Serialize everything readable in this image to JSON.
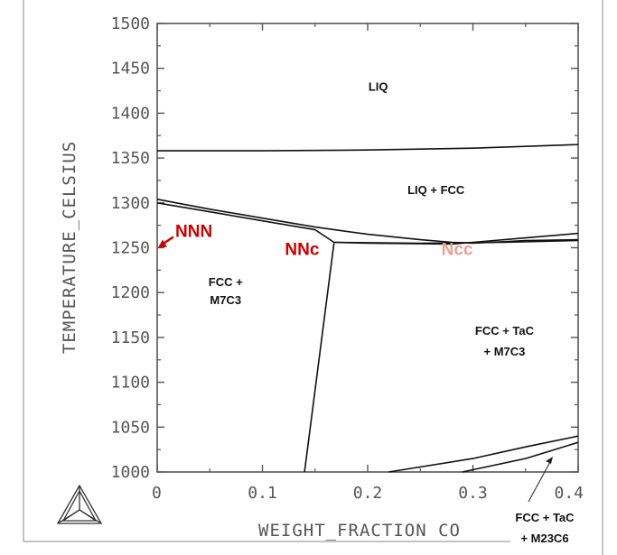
{
  "chart_data": {
    "type": "phase-diagram",
    "xlabel": "WEIGHT_FRACTION CO",
    "ylabel": "TEMPERATURE_CELSIUS",
    "xlim": [
      0,
      0.4
    ],
    "ylim": [
      1000,
      1500
    ],
    "x_ticks": [
      0,
      0.1,
      0.2,
      0.3,
      0.4
    ],
    "x_tick_labels": [
      "0",
      "0.1",
      "0.2",
      "0.3",
      "0.4"
    ],
    "y_ticks": [
      1000,
      1050,
      1100,
      1150,
      1200,
      1250,
      1300,
      1350,
      1400,
      1450,
      1500
    ],
    "y_tick_labels": [
      "1000",
      "1050",
      "1100",
      "1150",
      "1200",
      "1250",
      "1300",
      "1350",
      "1400",
      "1450",
      "1500"
    ],
    "grid": false,
    "boundaries": [
      {
        "points": [
          [
            0,
            1358
          ],
          [
            0.1,
            1358
          ],
          [
            0.2,
            1359
          ],
          [
            0.3,
            1361
          ],
          [
            0.4,
            1365
          ]
        ]
      },
      {
        "points": [
          [
            0,
            1304
          ],
          [
            0.05,
            1293
          ],
          [
            0.1,
            1283
          ],
          [
            0.15,
            1273
          ],
          [
            0.2,
            1265
          ],
          [
            0.25,
            1259
          ],
          [
            0.28,
            1256
          ],
          [
            0.3,
            1255
          ],
          [
            0.35,
            1258
          ],
          [
            0.4,
            1259
          ]
        ]
      },
      {
        "points": [
          [
            0,
            1300
          ],
          [
            0.05,
            1290
          ],
          [
            0.1,
            1280
          ],
          [
            0.15,
            1270
          ],
          [
            0.168,
            1256
          ],
          [
            0.2,
            1255
          ],
          [
            0.28,
            1254
          ],
          [
            0.3,
            1256
          ],
          [
            0.35,
            1261
          ],
          [
            0.4,
            1266
          ]
        ]
      },
      {
        "points": [
          [
            0.168,
            1256
          ],
          [
            0.25,
            1255
          ],
          [
            0.33,
            1256
          ],
          [
            0.4,
            1258
          ]
        ]
      },
      {
        "points": [
          [
            0.168,
            1255
          ],
          [
            0.14,
            1000
          ]
        ]
      },
      {
        "points": [
          [
            0.22,
            1000
          ],
          [
            0.3,
            1015
          ],
          [
            0.35,
            1028
          ],
          [
            0.4,
            1040
          ]
        ]
      },
      {
        "points": [
          [
            0.29,
            1000
          ],
          [
            0.35,
            1015
          ],
          [
            0.4,
            1033
          ]
        ]
      }
    ],
    "regions": [
      {
        "label": "LIQ",
        "x": 0.21,
        "t": 1425
      },
      {
        "label": "LIQ + FCC",
        "x": 0.265,
        "t": 1310
      },
      {
        "label": "FCC +",
        "x": 0.065,
        "t": 1207
      },
      {
        "label": "M7C3",
        "x": 0.065,
        "t": 1187
      },
      {
        "label": "FCC + TaC",
        "x": 0.33,
        "t": 1153
      },
      {
        "label": "+ M7C3",
        "x": 0.33,
        "t": 1130
      }
    ],
    "outside_label": {
      "lines": [
        "FCC + TaC",
        "+ M23C6"
      ],
      "arrow_to": [
        0.37,
        1013
      ]
    },
    "points": [
      {
        "label": "NNN",
        "x": 0,
        "t": 1250,
        "color": "#cc0000",
        "arrow": true
      },
      {
        "label": "NNc",
        "x": 0.16,
        "t": 1258,
        "color": "#cc0000"
      },
      {
        "label": "Ncc",
        "x": 0.285,
        "t": 1258,
        "color": "#e8a090"
      }
    ],
    "colors": {
      "axis": "#555555",
      "boundary": "#111111"
    }
  },
  "logo": {
    "name": "thermo-calc-triangle-logo"
  }
}
